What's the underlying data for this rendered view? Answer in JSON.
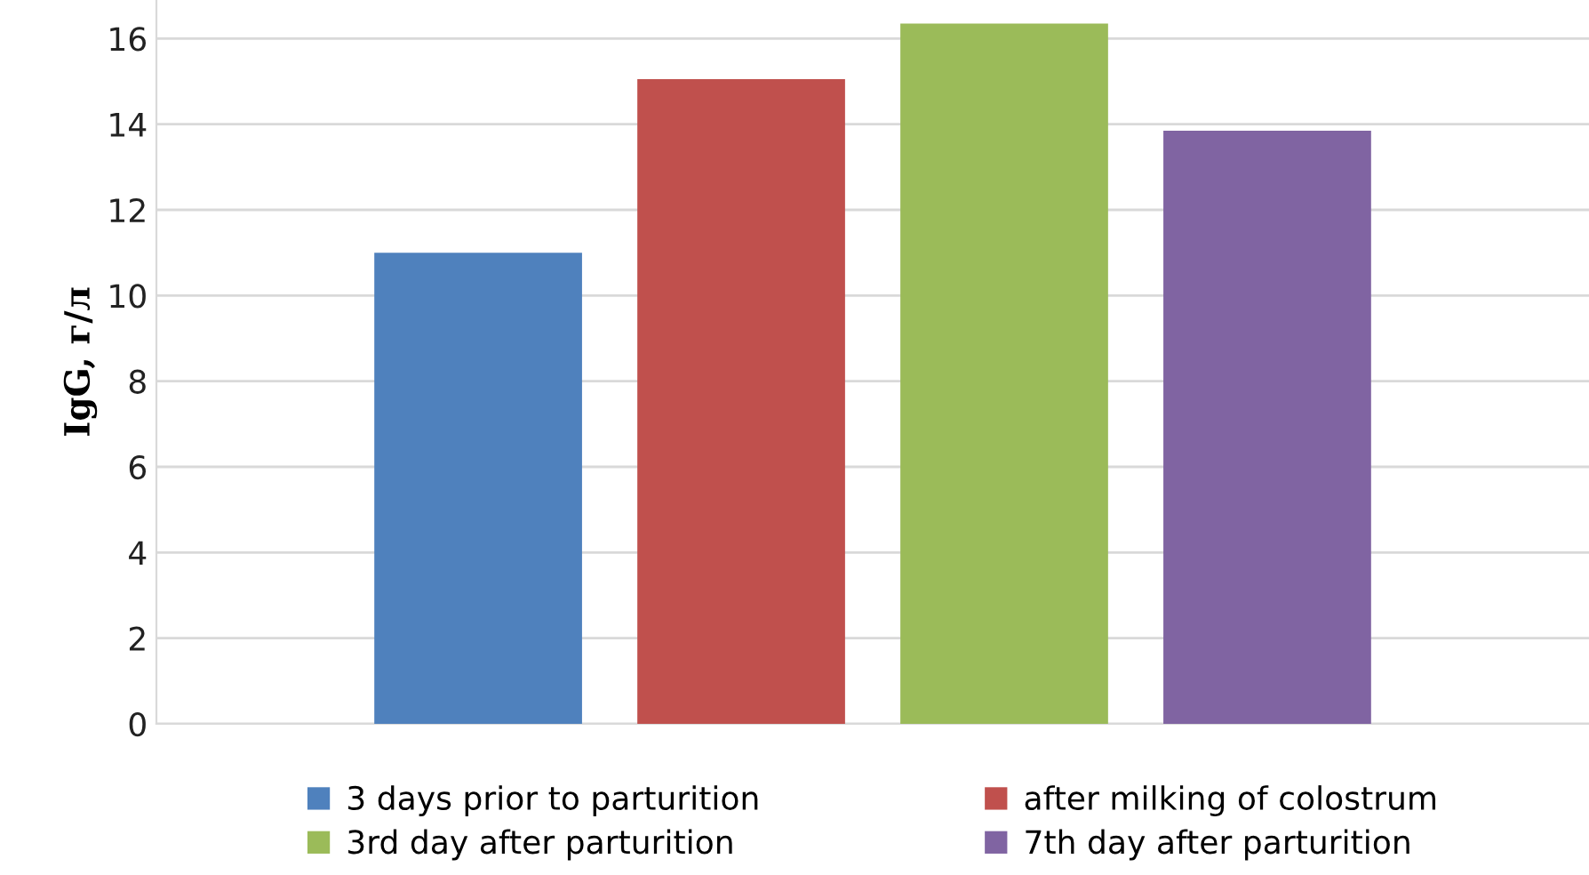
{
  "chart_data": {
    "type": "bar",
    "ylabel": "IgG, г/л",
    "categories": [
      null
    ],
    "series": [
      {
        "name": "3 days prior to parturition",
        "color": "#4f81bd",
        "values": [
          11.0
        ]
      },
      {
        "name": "after milking of colostrum",
        "color": "#c0504d",
        "values": [
          15.05
        ]
      },
      {
        "name": "3rd day after parturition",
        "color": "#9bbb59",
        "values": [
          16.35
        ]
      },
      {
        "name": "7th day after parturition",
        "color": "#8064a2",
        "values": [
          13.85
        ]
      }
    ],
    "ylim": [
      0,
      16.9
    ],
    "yticks": [
      0,
      2,
      4,
      6,
      8,
      10,
      12,
      14,
      16
    ],
    "grid": "y",
    "legend": "bottom"
  }
}
